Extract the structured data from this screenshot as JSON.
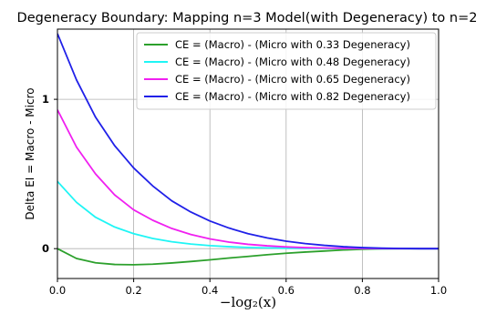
{
  "chart_data": {
    "type": "line",
    "title": "Degeneracy Boundary: Mapping n=3 Model(with Degeneracy) to n=2",
    "xlabel": "−log₂(x)",
    "ylabel": "Delta EI = Macro - Micro",
    "xlim": [
      0.0,
      1.0
    ],
    "ylim": [
      -0.2,
      1.47
    ],
    "xticks": [
      "0.0",
      "0.2",
      "0.4",
      "0.6",
      "0.8",
      "1.0"
    ],
    "yticks": [
      "0",
      "1"
    ],
    "grid": true,
    "legend_position": "top-right",
    "x": [
      0.0,
      0.05,
      0.1,
      0.15,
      0.2,
      0.25,
      0.3,
      0.35,
      0.4,
      0.45,
      0.5,
      0.55,
      0.6,
      0.65,
      0.7,
      0.75,
      0.8,
      0.85,
      0.9,
      0.95,
      1.0
    ],
    "series": [
      {
        "name": "CE = (Macro) - (Micro with 0.33 Degeneracy)",
        "color": "#2ca02c",
        "values": [
          0.0,
          -0.066,
          -0.095,
          -0.106,
          -0.108,
          -0.104,
          -0.096,
          -0.086,
          -0.075,
          -0.063,
          -0.052,
          -0.041,
          -0.031,
          -0.023,
          -0.016,
          -0.009,
          -0.004,
          -0.001,
          0.0,
          0.0,
          0.0
        ]
      },
      {
        "name": "CE = (Macro) - (Micro with 0.48 Degeneracy)",
        "color": "#1ff5f5",
        "values": [
          0.45,
          0.31,
          0.21,
          0.145,
          0.1,
          0.068,
          0.046,
          0.031,
          0.02,
          0.013,
          0.008,
          0.005,
          0.003,
          0.002,
          0.001,
          0.0005,
          0.0002,
          0.0,
          0.0,
          0.0,
          0.0
        ]
      },
      {
        "name": "CE = (Macro) - (Micro with 0.65 Degeneracy)",
        "color": "#f020f0",
        "values": [
          0.93,
          0.68,
          0.5,
          0.36,
          0.26,
          0.19,
          0.135,
          0.095,
          0.065,
          0.044,
          0.029,
          0.019,
          0.012,
          0.007,
          0.004,
          0.002,
          0.001,
          0.0005,
          0.0,
          0.0,
          0.0
        ]
      },
      {
        "name": "CE = (Macro) - (Micro with 0.82 Degeneracy)",
        "color": "#2020e8",
        "values": [
          1.44,
          1.13,
          0.88,
          0.69,
          0.54,
          0.42,
          0.32,
          0.245,
          0.185,
          0.138,
          0.1,
          0.072,
          0.05,
          0.034,
          0.022,
          0.013,
          0.007,
          0.003,
          0.001,
          0.0,
          0.0
        ]
      }
    ]
  }
}
